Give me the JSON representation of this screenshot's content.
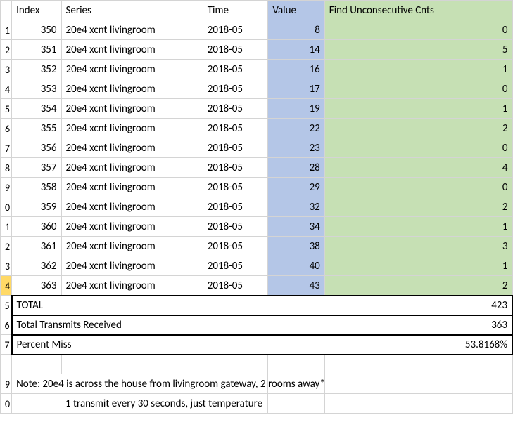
{
  "headers": {
    "index": "Index",
    "series": "Series",
    "time": "Time",
    "value": "Value",
    "find": "Find Unconsecutive Cnts"
  },
  "rows": [
    {
      "rn": "1",
      "index": "350",
      "series": "20e4 xcnt  livingroom",
      "time": "2018-05",
      "value": "8",
      "find": "0"
    },
    {
      "rn": "2",
      "index": "351",
      "series": "20e4 xcnt  livingroom",
      "time": "2018-05",
      "value": "14",
      "find": "5"
    },
    {
      "rn": "3",
      "index": "352",
      "series": "20e4 xcnt  livingroom",
      "time": "2018-05",
      "value": "16",
      "find": "1"
    },
    {
      "rn": "4",
      "index": "353",
      "series": "20e4 xcnt  livingroom",
      "time": "2018-05",
      "value": "17",
      "find": "0"
    },
    {
      "rn": "5",
      "index": "354",
      "series": "20e4 xcnt  livingroom",
      "time": "2018-05",
      "value": "19",
      "find": "1"
    },
    {
      "rn": "6",
      "index": "355",
      "series": "20e4 xcnt  livingroom",
      "time": "2018-05",
      "value": "22",
      "find": "2"
    },
    {
      "rn": "7",
      "index": "356",
      "series": "20e4 xcnt  livingroom",
      "time": "2018-05",
      "value": "23",
      "find": "0"
    },
    {
      "rn": "8",
      "index": "357",
      "series": "20e4 xcnt  livingroom",
      "time": "2018-05",
      "value": "28",
      "find": "4"
    },
    {
      "rn": "9",
      "index": "358",
      "series": "20e4 xcnt  livingroom",
      "time": "2018-05",
      "value": "29",
      "find": "0"
    },
    {
      "rn": "0",
      "index": "359",
      "series": "20e4 xcnt  livingroom",
      "time": "2018-05",
      "value": "32",
      "find": "2"
    },
    {
      "rn": "1",
      "index": "360",
      "series": "20e4 xcnt  livingroom",
      "time": "2018-05",
      "value": "34",
      "find": "1"
    },
    {
      "rn": "2",
      "index": "361",
      "series": "20e4 xcnt  livingroom",
      "time": "2018-05",
      "value": "38",
      "find": "3"
    },
    {
      "rn": "3",
      "index": "362",
      "series": "20e4 xcnt  livingroom",
      "time": "2018-05",
      "value": "40",
      "find": "1"
    },
    {
      "rn": "4",
      "index": "363",
      "series": "20e4 xcnt  livingroom",
      "time": "2018-05",
      "value": "43",
      "find": "2",
      "sel": true
    }
  ],
  "summary": {
    "total_rn": "5",
    "total_label": "TOTAL",
    "total_value": "423",
    "received_rn": "6",
    "received_label": "Total Transmits Received",
    "received_value": "363",
    "miss_rn": "7",
    "miss_label": "Percent Miss",
    "miss_value": "53.8168%"
  },
  "blank_rn": "",
  "notes": {
    "line1_rn": "9",
    "line1": "Note:  20e4 is across the house from livingroom gateway, 2 rooms away*",
    "line2_rn": "0",
    "line2": "1 transmit every 30 seconds, just temperature"
  },
  "colors": {
    "value_header_bg": "#b4c6e7",
    "find_header_bg": "#c6e0b4",
    "grid": "#d4d4d4",
    "selected_row": "#ffd966"
  }
}
